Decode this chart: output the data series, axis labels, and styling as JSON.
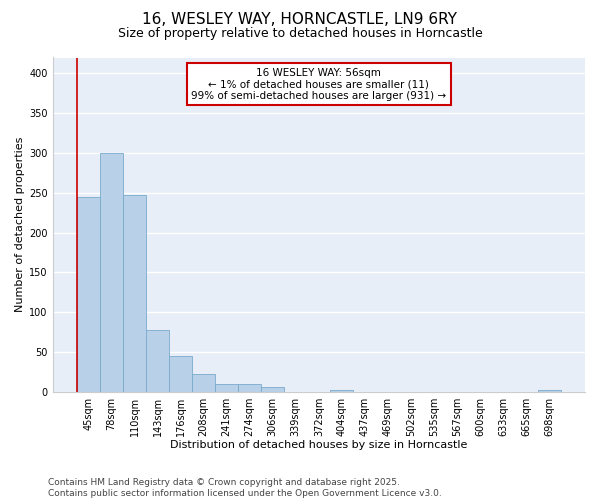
{
  "title1": "16, WESLEY WAY, HORNCASTLE, LN9 6RY",
  "title2": "Size of property relative to detached houses in Horncastle",
  "xlabel": "Distribution of detached houses by size in Horncastle",
  "ylabel": "Number of detached properties",
  "categories": [
    "45sqm",
    "78sqm",
    "110sqm",
    "143sqm",
    "176sqm",
    "208sqm",
    "241sqm",
    "274sqm",
    "306sqm",
    "339sqm",
    "372sqm",
    "404sqm",
    "437sqm",
    "469sqm",
    "502sqm",
    "535sqm",
    "567sqm",
    "600sqm",
    "633sqm",
    "665sqm",
    "698sqm"
  ],
  "values": [
    245,
    300,
    247,
    78,
    45,
    22,
    10,
    9,
    6,
    0,
    0,
    2,
    0,
    0,
    0,
    0,
    0,
    0,
    0,
    0,
    2
  ],
  "bar_color": "#b8d0e8",
  "bar_edge_color": "#7aaacc",
  "bg_color": "#e8eef8",
  "grid_color": "#ffffff",
  "annotation_box_color": "#cc0000",
  "annotation_text": "16 WESLEY WAY: 56sqm\n← 1% of detached houses are smaller (11)\n99% of semi-detached houses are larger (931) →",
  "marker_line_color": "#cc0000",
  "ylim": [
    0,
    420
  ],
  "yticks": [
    0,
    50,
    100,
    150,
    200,
    250,
    300,
    350,
    400
  ],
  "footer": "Contains HM Land Registry data © Crown copyright and database right 2025.\nContains public sector information licensed under the Open Government Licence v3.0.",
  "title1_fontsize": 11,
  "title2_fontsize": 9,
  "axis_label_fontsize": 8,
  "tick_fontsize": 7,
  "annotation_fontsize": 7.5,
  "footer_fontsize": 6.5
}
